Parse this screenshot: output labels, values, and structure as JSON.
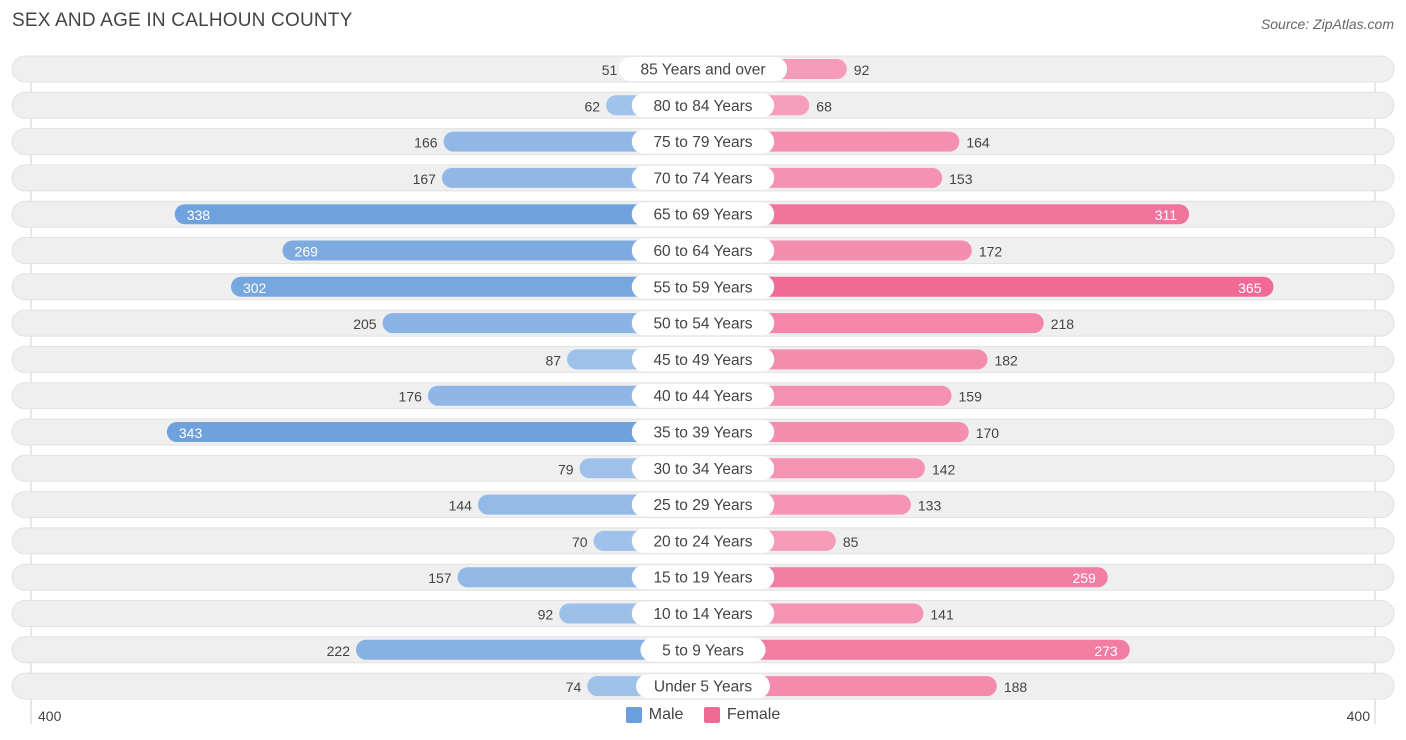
{
  "title": "SEX AND AGE IN CALHOUN COUNTY",
  "source": "Source: ZipAtlas.com",
  "colors": {
    "male_dark": "#6a9fdc",
    "male_light": "#a9c7ec",
    "female_dark": "#f06a95",
    "female_light": "#f7a6c1",
    "row_bg": "#efefef"
  },
  "legend": {
    "male": "Male",
    "female": "Female"
  },
  "axis": {
    "left_label": "400",
    "right_label": "400"
  },
  "chart_data": {
    "type": "bar",
    "orientation": "horizontal-diverging",
    "categories": [
      "85 Years and over",
      "80 to 84 Years",
      "75 to 79 Years",
      "70 to 74 Years",
      "65 to 69 Years",
      "60 to 64 Years",
      "55 to 59 Years",
      "50 to 54 Years",
      "45 to 49 Years",
      "40 to 44 Years",
      "35 to 39 Years",
      "30 to 34 Years",
      "25 to 29 Years",
      "20 to 24 Years",
      "15 to 19 Years",
      "10 to 14 Years",
      "5 to 9 Years",
      "Under 5 Years"
    ],
    "series": [
      {
        "name": "Male",
        "values": [
          51,
          62,
          166,
          167,
          338,
          269,
          302,
          205,
          87,
          176,
          343,
          79,
          144,
          70,
          157,
          92,
          222,
          74
        ]
      },
      {
        "name": "Female",
        "values": [
          92,
          68,
          164,
          153,
          311,
          172,
          365,
          218,
          182,
          159,
          170,
          142,
          133,
          85,
          259,
          141,
          273,
          188
        ]
      }
    ],
    "xlim": [
      -400,
      400
    ],
    "legend_position": "bottom-center"
  }
}
